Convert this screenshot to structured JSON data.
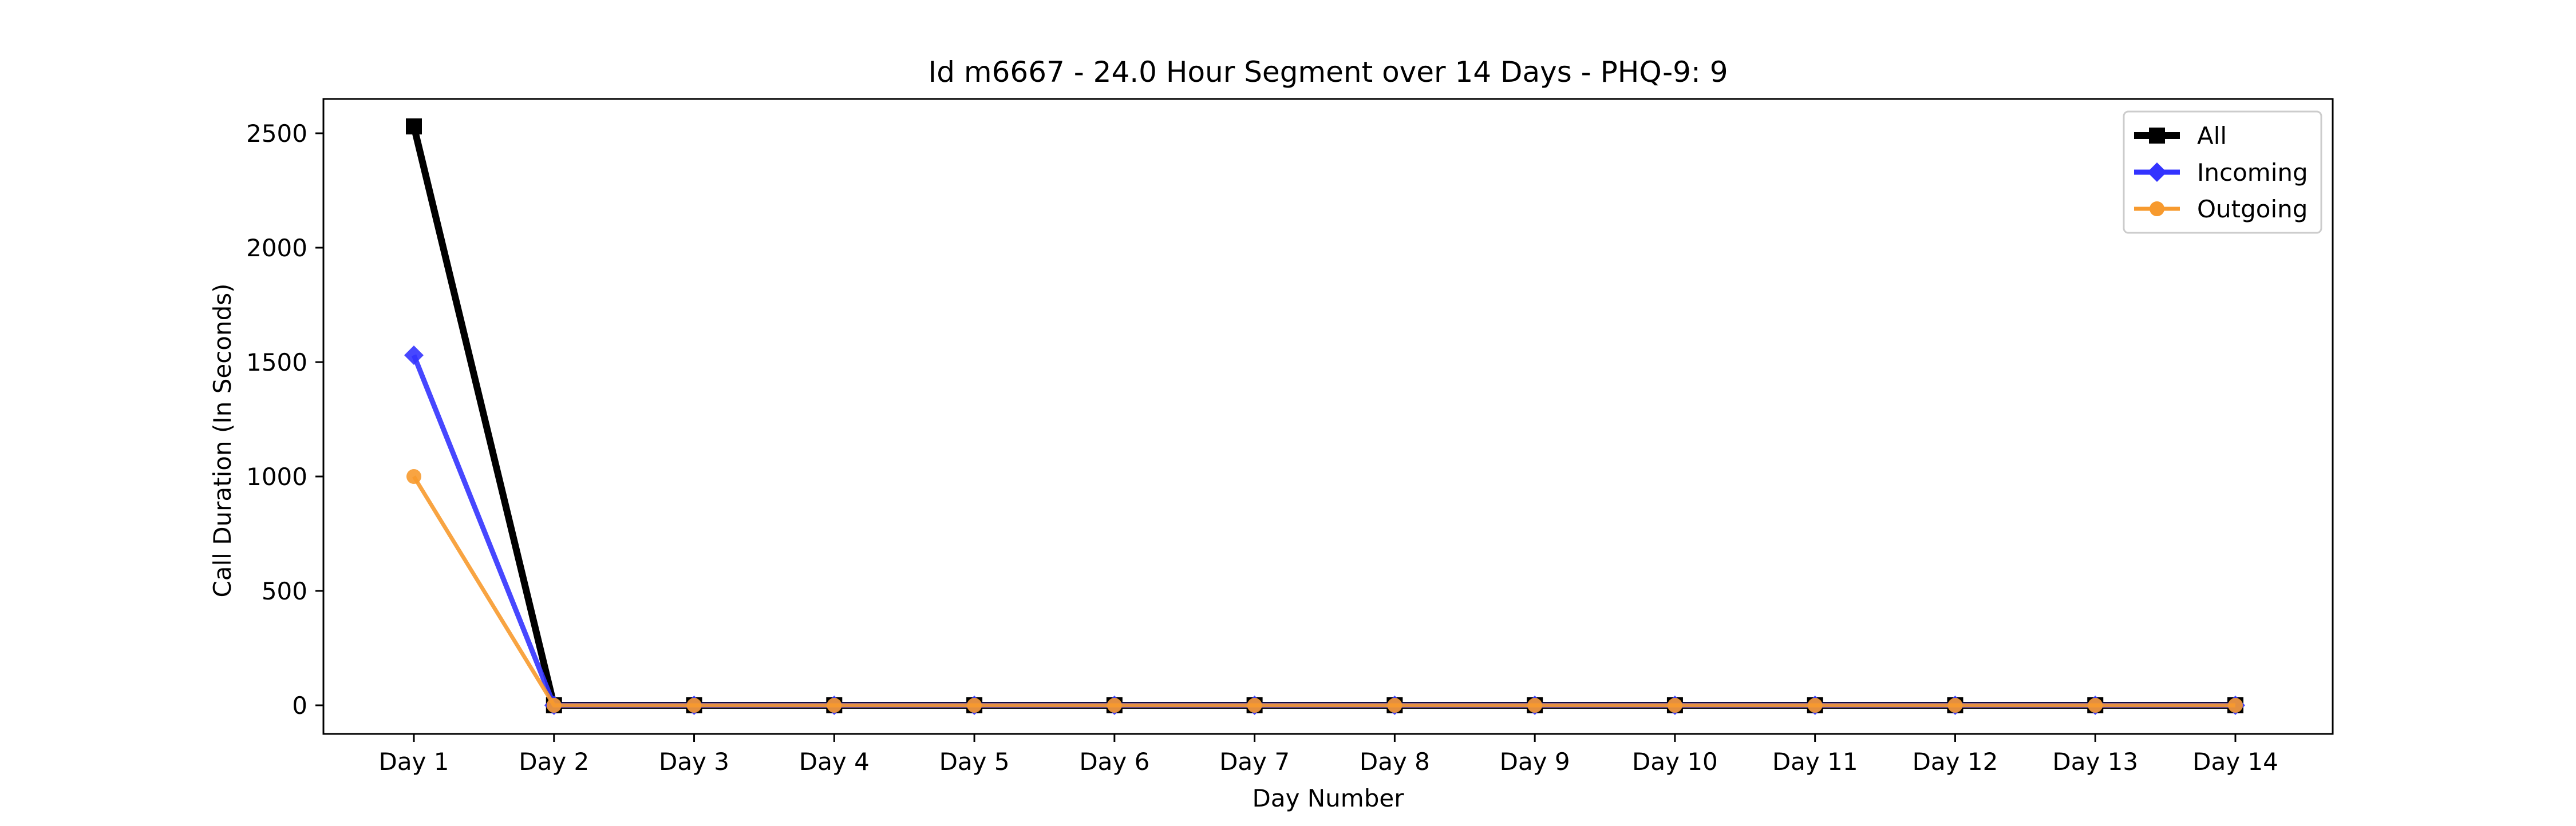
{
  "chart_data": {
    "type": "line",
    "title": "Id m6667 - 24.0 Hour Segment over 14 Days - PHQ-9: 9",
    "xlabel": "Day Number",
    "ylabel": "Call Duration (In Seconds)",
    "categories": [
      "Day 1",
      "Day 2",
      "Day 3",
      "Day 4",
      "Day 5",
      "Day 6",
      "Day 7",
      "Day 8",
      "Day 9",
      "Day 10",
      "Day 11",
      "Day 12",
      "Day 13",
      "Day 14"
    ],
    "yticks": [
      0,
      500,
      1000,
      1500,
      2000,
      2500
    ],
    "ylim": [
      -125,
      2650
    ],
    "grid": false,
    "legend_position": "top-right",
    "series": [
      {
        "name": "All",
        "color": "#000000",
        "marker": "square",
        "values": [
          2530,
          0,
          0,
          0,
          0,
          0,
          0,
          0,
          0,
          0,
          0,
          0,
          0,
          0
        ]
      },
      {
        "name": "Incoming",
        "color": "#3333ff",
        "marker": "diamond",
        "values": [
          1530,
          0,
          0,
          0,
          0,
          0,
          0,
          0,
          0,
          0,
          0,
          0,
          0,
          0
        ]
      },
      {
        "name": "Outgoing",
        "color": "#f79a2e",
        "marker": "circle",
        "values": [
          1000,
          0,
          0,
          0,
          0,
          0,
          0,
          0,
          0,
          0,
          0,
          0,
          0,
          0
        ]
      }
    ]
  }
}
